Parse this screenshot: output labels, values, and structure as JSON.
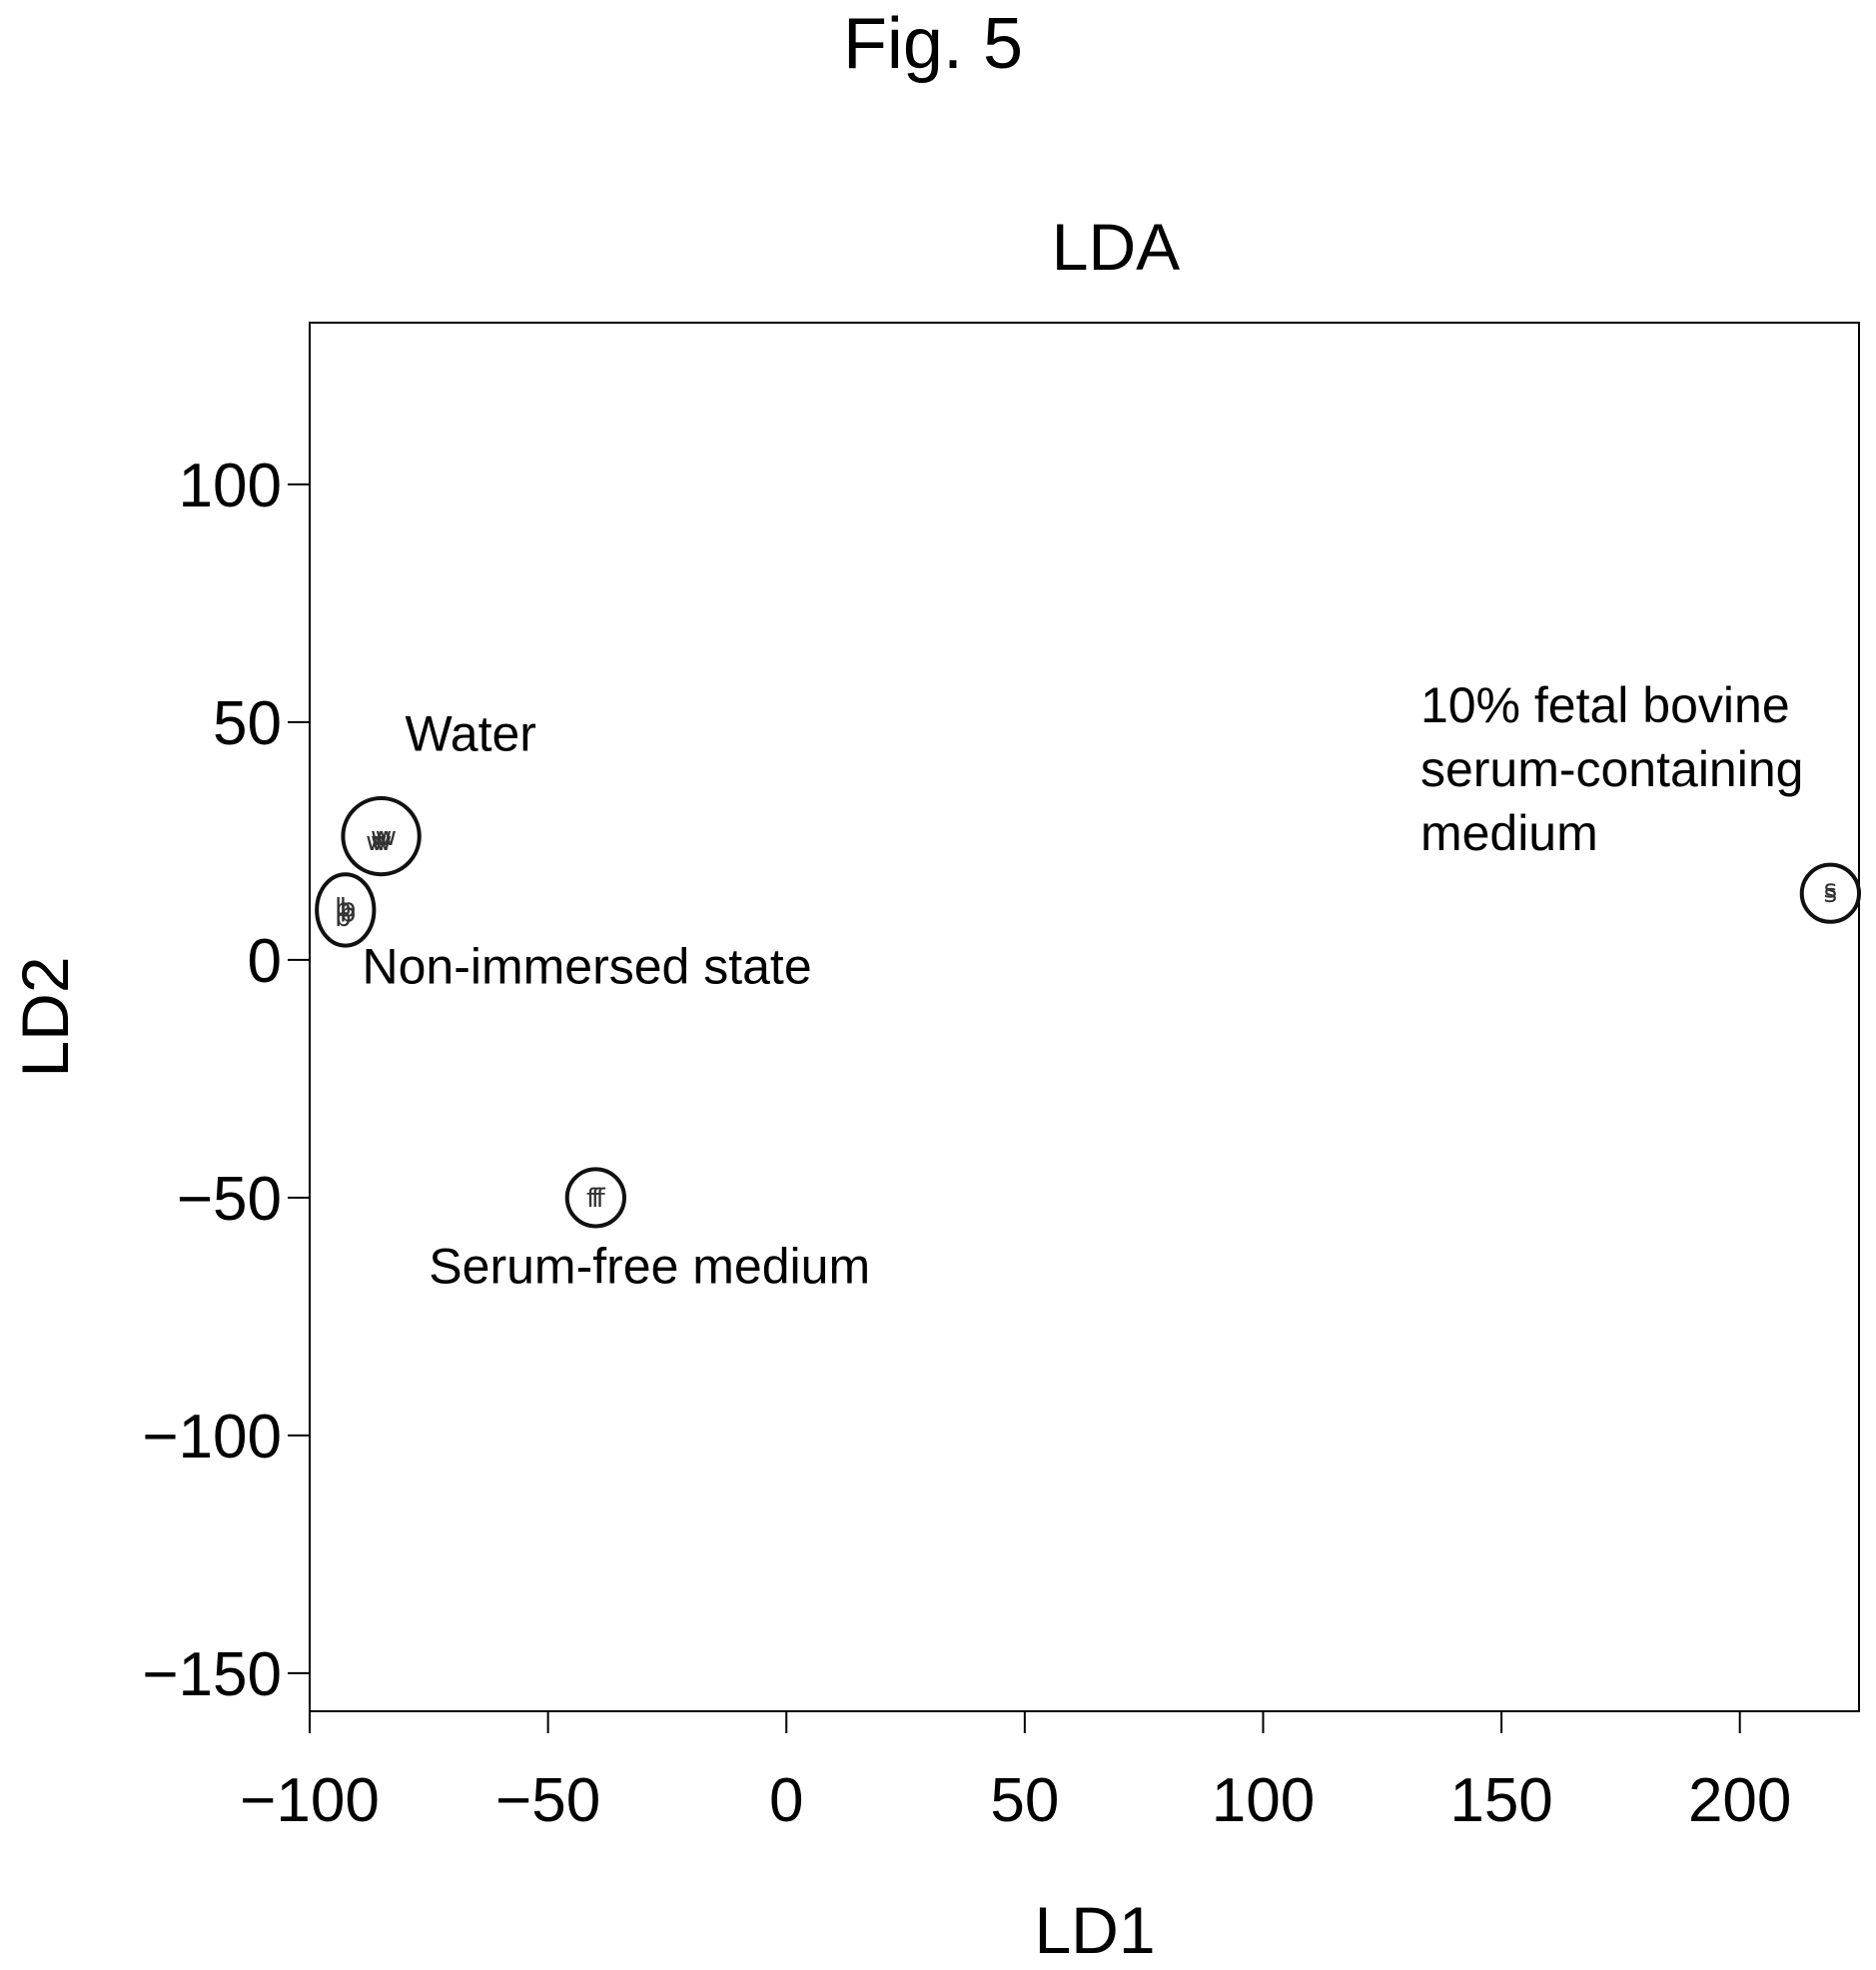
{
  "figure_label": "Fig. 5",
  "chart_data": {
    "type": "scatter",
    "title": "LDA",
    "xlabel": "LD1",
    "ylabel": "LD2",
    "xlim": [
      -100,
      225
    ],
    "ylim": [
      -158,
      134
    ],
    "xticks": [
      -100,
      -50,
      0,
      50,
      100,
      150,
      200
    ],
    "yticks": [
      -150,
      -100,
      -50,
      0,
      50,
      100
    ],
    "xtick_labels": [
      "−100",
      "−50",
      "0",
      "50",
      "100",
      "150",
      "200"
    ],
    "ytick_labels": [
      "−150",
      "−100",
      "−50",
      "0",
      "50",
      "100"
    ],
    "grid": false,
    "legend": "none",
    "series": [
      {
        "marker": "w",
        "points": [
          [
            -85,
            26
          ],
          [
            -86,
            25
          ],
          [
            -84,
            26
          ],
          [
            -85,
            25
          ]
        ]
      },
      {
        "marker": "b",
        "points": [
          [
            -93,
            11
          ],
          [
            -92,
            10
          ],
          [
            -93,
            9
          ],
          [
            -92,
            11
          ]
        ]
      },
      {
        "marker": "f",
        "points": [
          [
            -41,
            -50
          ],
          [
            -40,
            -50
          ],
          [
            -39,
            -50
          ]
        ]
      },
      {
        "marker": "s",
        "points": [
          [
            219,
            14
          ],
          [
            219,
            15
          ]
        ]
      }
    ],
    "clusters": [
      {
        "label": "Water",
        "center": [
          -85,
          26
        ],
        "radius": [
          8,
          8
        ]
      },
      {
        "label": "Non-immersed state",
        "center": [
          -92.5,
          10.5
        ],
        "radius": [
          6,
          7.5
        ]
      },
      {
        "label": "Serum-free medium",
        "center": [
          -40,
          -50
        ],
        "radius": [
          6,
          6
        ]
      },
      {
        "label": "10% fetal bovine serum-containing medium",
        "center": [
          219,
          14
        ],
        "radius": [
          6,
          6
        ]
      }
    ],
    "annotations": [
      {
        "lines": [
          "Water"
        ],
        "at": [
          -80,
          44
        ]
      },
      {
        "lines": [
          "Non-immersed state"
        ],
        "at": [
          -89,
          -5
        ]
      },
      {
        "lines": [
          "Serum-free medium"
        ],
        "at": [
          -75,
          -68
        ]
      },
      {
        "lines": [
          "10% fetal bovine",
          "serum-containing",
          "medium"
        ],
        "at": [
          133,
          50
        ]
      }
    ]
  }
}
